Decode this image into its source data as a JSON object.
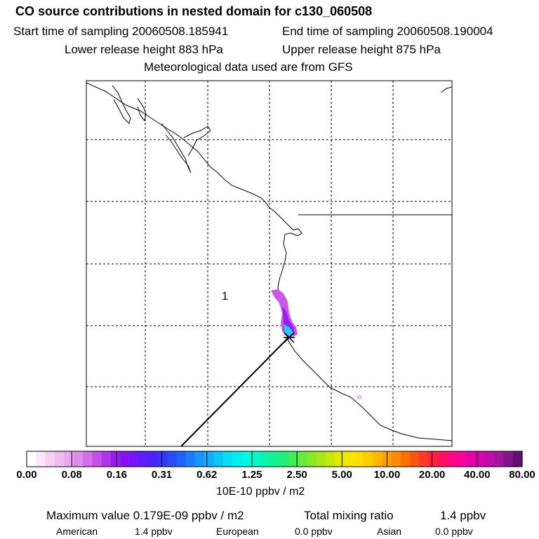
{
  "header": {
    "title": "CO  source contributions in nested domain for c130_060508",
    "start": "Start time of sampling 20060508.185941",
    "end": "End time of sampling 20060508.190004",
    "lower": "Lower release height  883 hPa",
    "upper": "Upper release height  875 hPa",
    "met": "Meteorological data used are from GFS"
  },
  "map": {
    "region_label": "1"
  },
  "chart_data": {
    "type": "heatmap",
    "title": "CO  source contributions in nested domain for c130_060508",
    "colorbar": {
      "tick_labels": [
        "0.00",
        "0.08",
        "0.16",
        "0.31",
        "0.62",
        "1.25",
        "2.50",
        "5.00",
        "10.00",
        "20.00",
        "40.00",
        "80.00"
      ],
      "unit": "10E-10 ppbv / m2",
      "colors": [
        "#ffffff",
        "#fbe6fb",
        "#f6d1f6",
        "#f0bcf2",
        "#eaa6ee",
        "#e08cea",
        "#d46fe6",
        "#c450e8",
        "#b034ec",
        "#9a1df0",
        "#8612f4",
        "#7414f8",
        "#5e1cfc",
        "#4a24ff",
        "#3436ff",
        "#2a4cff",
        "#1f62ff",
        "#1a7cff",
        "#1596ff",
        "#10aefc",
        "#0cc6f6",
        "#08dcee",
        "#00f0ee",
        "#00f8e0",
        "#06f6c8",
        "#0cf4ae",
        "#16f292",
        "#22f076",
        "#40ee5a",
        "#62ec40",
        "#86ea28",
        "#a8e814",
        "#c8e808",
        "#e2ea00",
        "#f4e800",
        "#ffde00",
        "#ffcc00",
        "#ffb800",
        "#ffa200",
        "#ff8a00",
        "#ff7000",
        "#ff5414",
        "#ff3a28",
        "#ff2040",
        "#ff1060",
        "#ff0880",
        "#f8049a",
        "#ea00a8",
        "#d800b0",
        "#c00aac",
        "#a4149c",
        "#84148a",
        "#621070"
      ]
    },
    "max_value": "Maximum value  0.179E-09 ppbv / m2",
    "total_label": "Total mixing ratio",
    "total_value": "1.4 ppbv",
    "sources": [
      {
        "name": "American",
        "value": "1.4 ppbv"
      },
      {
        "name": "European",
        "value": "0.0 ppbv"
      },
      {
        "name": "Asian",
        "value": "0.0 ppbv"
      }
    ],
    "release_site_marker": "x",
    "plume": [
      {
        "cells": "northward plume near release site",
        "intensity": "0.08-2.50"
      }
    ]
  }
}
